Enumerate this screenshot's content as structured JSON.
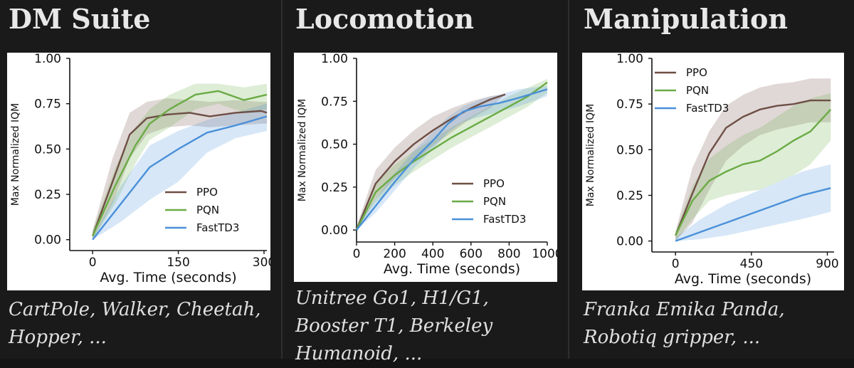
{
  "panels": [
    {
      "title": "DM Suite",
      "caption": "CartPole, Walker, Cheetah, Hopper, ...",
      "chart_data": {
        "type": "line",
        "xlabel": "Avg. Time (seconds)",
        "ylabel": "Max Normalized IQM",
        "xlim": [
          -40,
          305
        ],
        "ylim": [
          -0.06,
          1.0
        ],
        "xticks": [
          0,
          150,
          300
        ],
        "yticks": [
          0.0,
          0.25,
          0.5,
          0.75,
          1.0
        ],
        "ytick_labels": [
          "0.00",
          "0.25",
          "0.50",
          "0.75",
          "1.00"
        ],
        "legend_position": "lower-right",
        "series": [
          {
            "name": "PPO",
            "color": "#6e4f45",
            "x": [
              0,
              35,
              65,
              95,
              130,
              170,
              205,
              250,
              295,
              305
            ],
            "y": [
              0.02,
              0.32,
              0.58,
              0.67,
              0.69,
              0.7,
              0.68,
              0.7,
              0.71,
              0.7
            ],
            "upper": [
              0.05,
              0.45,
              0.7,
              0.76,
              0.78,
              0.77,
              0.76,
              0.77,
              0.76,
              0.76
            ],
            "lower": [
              0.0,
              0.2,
              0.45,
              0.58,
              0.62,
              0.63,
              0.62,
              0.63,
              0.64,
              0.64
            ]
          },
          {
            "name": "PQN",
            "color": "#6aab45",
            "x": [
              0,
              40,
              75,
              100,
              135,
              180,
              220,
              265,
              305
            ],
            "y": [
              0.02,
              0.3,
              0.52,
              0.64,
              0.72,
              0.8,
              0.82,
              0.77,
              0.8
            ],
            "upper": [
              0.05,
              0.4,
              0.62,
              0.72,
              0.8,
              0.86,
              0.86,
              0.84,
              0.86
            ],
            "lower": [
              0.0,
              0.2,
              0.42,
              0.55,
              0.62,
              0.72,
              0.75,
              0.7,
              0.72
            ]
          },
          {
            "name": "FastTD3",
            "color": "#4a90d9",
            "x": [
              0,
              50,
              100,
              150,
              200,
              250,
              305
            ],
            "y": [
              0.0,
              0.2,
              0.4,
              0.5,
              0.59,
              0.63,
              0.68
            ],
            "upper": [
              0.01,
              0.3,
              0.52,
              0.6,
              0.66,
              0.7,
              0.75
            ],
            "lower": [
              0.0,
              0.1,
              0.22,
              0.32,
              0.48,
              0.56,
              0.6
            ]
          }
        ]
      }
    },
    {
      "title": "Locomotion",
      "caption": "Unitree Go1, H1/G1, Booster T1, Berkeley Humanoid, ...",
      "chart_data": {
        "type": "line",
        "xlabel": "Avg. Time (seconds)",
        "ylabel": "Max Normalized IQM",
        "xlim": [
          0,
          1000
        ],
        "ylim": [
          -0.07,
          1.0
        ],
        "xticks": [
          0,
          200,
          400,
          600,
          800,
          1000
        ],
        "yticks": [
          0.0,
          0.25,
          0.5,
          0.75,
          1.0
        ],
        "ytick_labels": [
          "0.00",
          "0.25",
          "0.50",
          "0.75",
          "1.00"
        ],
        "legend_position": "lower-right",
        "series": [
          {
            "name": "PPO",
            "color": "#6e4f45",
            "x": [
              0,
              100,
              200,
              300,
              400,
              500,
              600,
              700,
              780
            ],
            "y": [
              0.0,
              0.27,
              0.4,
              0.5,
              0.58,
              0.65,
              0.71,
              0.76,
              0.79
            ],
            "upper": [
              0.02,
              0.35,
              0.48,
              0.58,
              0.66,
              0.71,
              0.75,
              0.78,
              0.79
            ],
            "lower": [
              0.0,
              0.18,
              0.3,
              0.4,
              0.49,
              0.57,
              0.65,
              0.71,
              0.79
            ]
          },
          {
            "name": "PQN",
            "color": "#6aab45",
            "x": [
              0,
              100,
              200,
              300,
              400,
              500,
              600,
              700,
              800,
              900,
              1000
            ],
            "y": [
              0.0,
              0.22,
              0.32,
              0.4,
              0.47,
              0.54,
              0.6,
              0.66,
              0.72,
              0.78,
              0.86
            ],
            "upper": [
              0.02,
              0.28,
              0.38,
              0.46,
              0.53,
              0.6,
              0.66,
              0.72,
              0.78,
              0.83,
              0.88
            ],
            "lower": [
              0.0,
              0.16,
              0.26,
              0.34,
              0.41,
              0.48,
              0.54,
              0.6,
              0.66,
              0.72,
              0.8
            ]
          },
          {
            "name": "FastTD3",
            "color": "#4a90d9",
            "x": [
              0,
              100,
              200,
              300,
              400,
              480,
              560,
              650,
              750,
              850,
              1000
            ],
            "y": [
              0.0,
              0.14,
              0.28,
              0.41,
              0.52,
              0.62,
              0.69,
              0.72,
              0.74,
              0.77,
              0.82
            ],
            "upper": [
              0.02,
              0.18,
              0.33,
              0.46,
              0.57,
              0.66,
              0.72,
              0.76,
              0.79,
              0.82,
              0.84
            ],
            "lower": [
              0.0,
              0.1,
              0.23,
              0.36,
              0.47,
              0.57,
              0.63,
              0.66,
              0.69,
              0.72,
              0.78
            ]
          }
        ]
      }
    },
    {
      "title": "Manipulation",
      "caption": "Franka Emika Panda, Robotiq gripper, ...",
      "chart_data": {
        "type": "line",
        "xlabel": "Avg. Time (seconds)",
        "ylabel": "Max Normalized IQM",
        "xlim": [
          -140,
          940
        ],
        "ylim": [
          -0.06,
          1.0
        ],
        "xticks": [
          0,
          450,
          900
        ],
        "yticks": [
          0.0,
          0.25,
          0.5,
          0.75,
          1.0
        ],
        "ytick_labels": [
          "0.00",
          "0.25",
          "0.50",
          "0.75",
          "1.00"
        ],
        "legend_position": "upper-left",
        "series": [
          {
            "name": "PPO",
            "color": "#6e4f45",
            "x": [
              0,
              100,
              200,
              300,
              400,
              500,
              600,
              700,
              800,
              920
            ],
            "y": [
              0.03,
              0.26,
              0.48,
              0.62,
              0.68,
              0.72,
              0.74,
              0.75,
              0.77,
              0.77
            ],
            "upper": [
              0.05,
              0.4,
              0.6,
              0.74,
              0.8,
              0.84,
              0.86,
              0.87,
              0.89,
              0.89
            ],
            "lower": [
              0.0,
              0.1,
              0.28,
              0.44,
              0.52,
              0.58,
              0.61,
              0.63,
              0.65,
              0.65
            ]
          },
          {
            "name": "PQN",
            "color": "#6aab45",
            "x": [
              0,
              100,
              200,
              300,
              400,
              500,
              600,
              700,
              800,
              920
            ],
            "y": [
              0.03,
              0.22,
              0.33,
              0.38,
              0.42,
              0.44,
              0.49,
              0.55,
              0.6,
              0.72
            ],
            "upper": [
              0.05,
              0.3,
              0.45,
              0.52,
              0.58,
              0.62,
              0.68,
              0.74,
              0.78,
              0.81
            ],
            "lower": [
              0.0,
              0.12,
              0.22,
              0.25,
              0.27,
              0.28,
              0.32,
              0.36,
              0.42,
              0.55
            ]
          },
          {
            "name": "FastTD3",
            "color": "#4a90d9",
            "x": [
              0,
              150,
              300,
              450,
              600,
              750,
              920
            ],
            "y": [
              0.0,
              0.05,
              0.1,
              0.15,
              0.2,
              0.25,
              0.29
            ],
            "upper": [
              0.02,
              0.12,
              0.2,
              0.26,
              0.32,
              0.38,
              0.42
            ],
            "lower": [
              0.0,
              0.01,
              0.03,
              0.06,
              0.09,
              0.12,
              0.16
            ]
          }
        ]
      }
    }
  ]
}
